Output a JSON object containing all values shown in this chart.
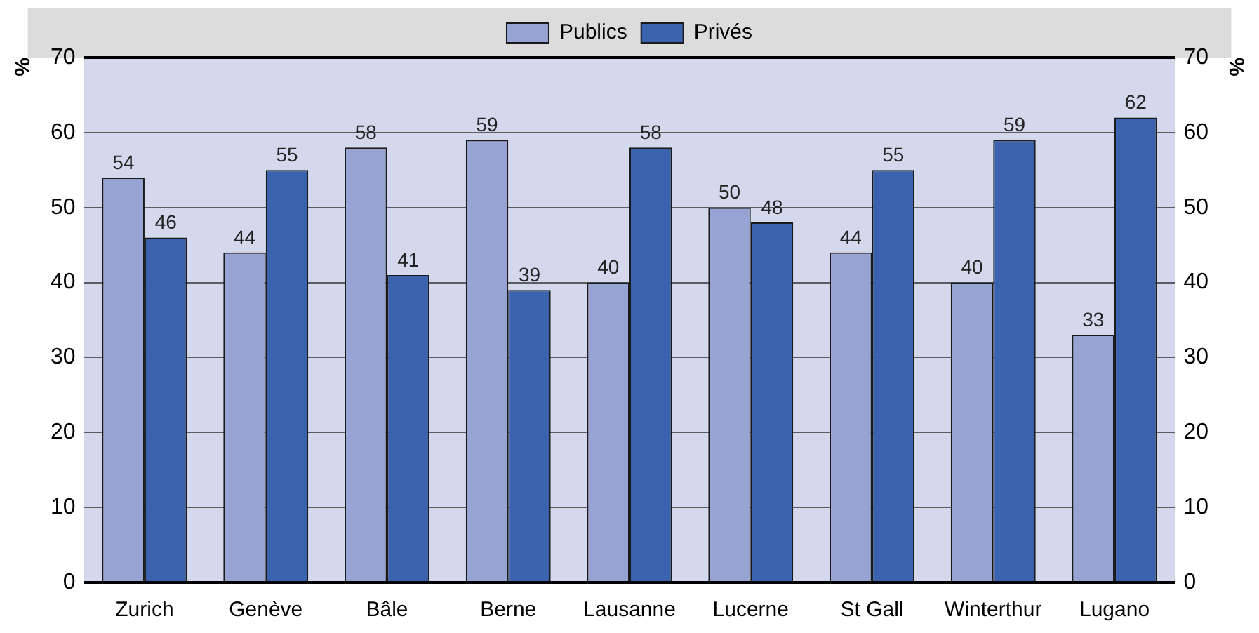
{
  "chart_data": {
    "type": "bar",
    "ylabel": "%",
    "y2label": "%",
    "categories": [
      "Zurich",
      "Genève",
      "Bâle",
      "Berne",
      "Lausanne",
      "Lucerne",
      "St Gall",
      "Winterthur",
      "Lugano"
    ],
    "series": [
      {
        "name": "Publics",
        "color": "#97a3d3",
        "values": [
          54,
          44,
          58,
          59,
          40,
          50,
          44,
          40,
          33
        ]
      },
      {
        "name": "Privés",
        "color": "#3a62ad",
        "values": [
          46,
          55,
          41,
          39,
          58,
          48,
          55,
          59,
          62
        ]
      }
    ],
    "ylim": [
      0,
      70
    ],
    "yticks": [
      0,
      10,
      20,
      30,
      40,
      50,
      60,
      70
    ],
    "y2lim": [
      0,
      70
    ],
    "y2ticks": [
      0,
      10,
      20,
      30,
      40,
      50,
      60,
      70
    ],
    "grid": "y",
    "legend": "top",
    "data_labels": true
  }
}
